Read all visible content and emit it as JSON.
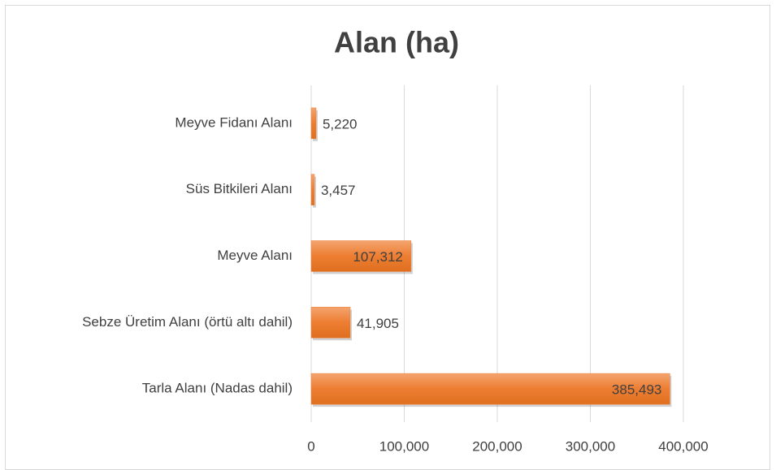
{
  "chart_data": {
    "type": "bar",
    "orientation": "horizontal",
    "title": "Alan (ha)",
    "categories": [
      "Meyve Fidanı Alanı",
      "Süs Bitkileri Alanı",
      "Meyve Alanı",
      "Sebze Üretim Alanı (örtü altı dahil)",
      "Tarla Alanı (Nadas dahil)"
    ],
    "values": [
      5220,
      3457,
      107312,
      41905,
      385493
    ],
    "value_labels": [
      "5,220",
      "3,457",
      "107,312",
      "41,905",
      "385,493"
    ],
    "color": "#ed7d31",
    "xlim": [
      0,
      400000
    ],
    "xticks": [
      0,
      {
        "value": 100000,
        "label": "100,000"
      },
      {
        "value": 200000,
        "label": "200,000"
      },
      {
        "value": 300000,
        "label": "300,000"
      },
      {
        "value": 400000,
        "label": "400,000"
      }
    ],
    "grid": true
  }
}
